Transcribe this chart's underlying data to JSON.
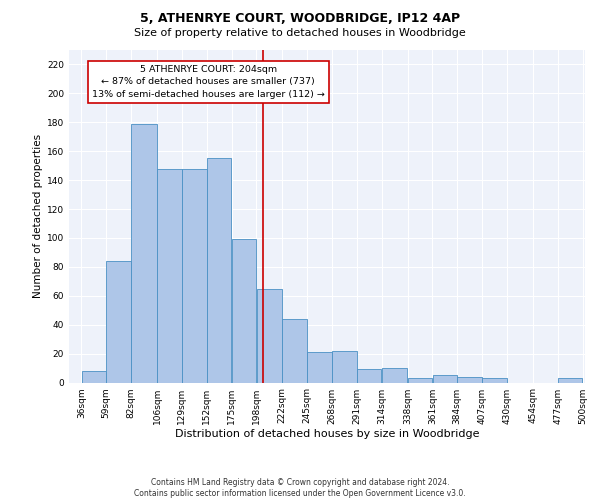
{
  "title": "5, ATHENRYE COURT, WOODBRIDGE, IP12 4AP",
  "subtitle": "Size of property relative to detached houses in Woodbridge",
  "xlabel": "Distribution of detached houses by size in Woodbridge",
  "ylabel": "Number of detached properties",
  "footer_line1": "Contains HM Land Registry data © Crown copyright and database right 2024.",
  "footer_line2": "Contains public sector information licensed under the Open Government Licence v3.0.",
  "property_size": 204,
  "annotation_title": "5 ATHENRYE COURT: 204sqm",
  "annotation_line2": "← 87% of detached houses are smaller (737)",
  "annotation_line3": "13% of semi-detached houses are larger (112) →",
  "bar_bins": [
    36,
    59,
    82,
    106,
    129,
    152,
    175,
    198,
    222,
    245,
    268,
    291,
    314,
    338,
    361,
    384,
    407,
    430,
    454,
    477,
    500
  ],
  "bar_heights": [
    8,
    84,
    179,
    148,
    148,
    155,
    99,
    65,
    44,
    21,
    22,
    9,
    10,
    3,
    5,
    4,
    3,
    0,
    0,
    3
  ],
  "bar_color": "#aec6e8",
  "bar_edge_color": "#4a90c4",
  "vline_x": 204,
  "vline_color": "#cc0000",
  "ylim": [
    0,
    230
  ],
  "yticks": [
    0,
    20,
    40,
    60,
    80,
    100,
    120,
    140,
    160,
    180,
    200,
    220
  ],
  "background_color": "#eef2fa",
  "grid_color": "#ffffff",
  "fig_background": "#ffffff",
  "title_fontsize": 9,
  "subtitle_fontsize": 8,
  "xlabel_fontsize": 8,
  "ylabel_fontsize": 7.5,
  "tick_fontsize": 6.5,
  "annotation_fontsize": 6.8,
  "footer_fontsize": 5.5
}
